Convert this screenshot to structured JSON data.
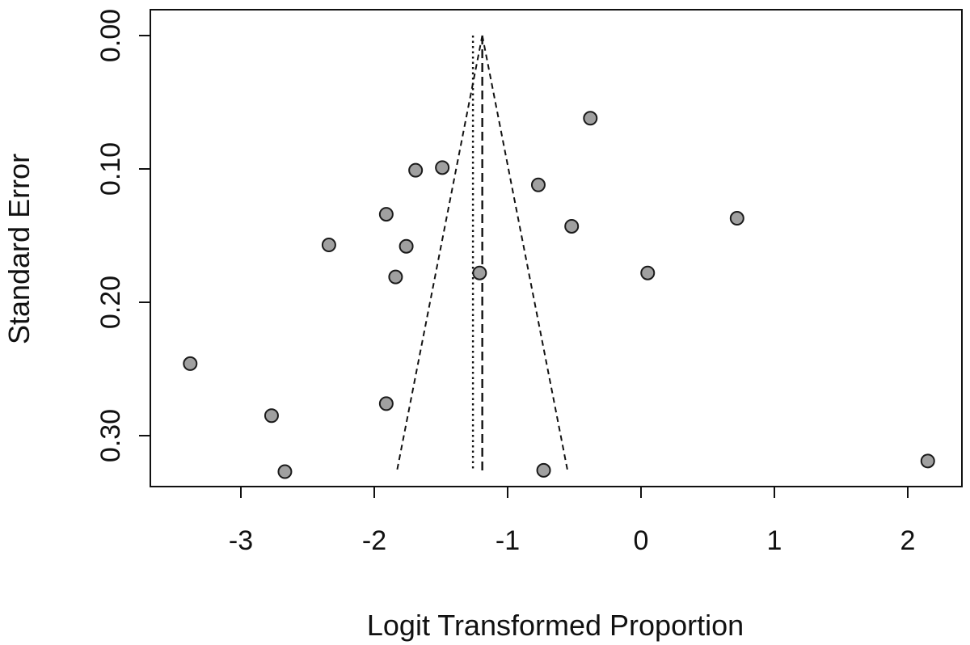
{
  "chart_data": {
    "type": "scatter",
    "title": "",
    "xlabel": "Logit Transformed Proportion",
    "ylabel": "Standard Error",
    "xlim": [
      -3.7,
      2.4
    ],
    "ylim": [
      0.0,
      0.338
    ],
    "y_reversed": true,
    "x_ticks": [
      -3,
      -2,
      -1,
      0,
      1,
      2
    ],
    "x_tick_labels": [
      "-3",
      "-2",
      "-1",
      "0",
      "1",
      "2"
    ],
    "y_ticks": [
      0.0,
      0.1,
      0.2,
      0.3
    ],
    "y_tick_labels": [
      "0.00",
      "0.10",
      "0.20",
      "0.30"
    ],
    "grid": false,
    "legend": "none",
    "point_fill": "#a0a0a0",
    "point_stroke": "#1a1a1a",
    "line_color": "#111111",
    "points": [
      {
        "x": -0.38,
        "y": 0.062
      },
      {
        "x": -1.49,
        "y": 0.099
      },
      {
        "x": -1.69,
        "y": 0.101
      },
      {
        "x": -0.77,
        "y": 0.112
      },
      {
        "x": -1.91,
        "y": 0.134
      },
      {
        "x": 0.72,
        "y": 0.137
      },
      {
        "x": -0.52,
        "y": 0.143
      },
      {
        "x": -2.34,
        "y": 0.157
      },
      {
        "x": -1.76,
        "y": 0.158
      },
      {
        "x": -1.21,
        "y": 0.178
      },
      {
        "x": 0.05,
        "y": 0.178
      },
      {
        "x": -1.84,
        "y": 0.181
      },
      {
        "x": -3.38,
        "y": 0.246
      },
      {
        "x": -1.91,
        "y": 0.276
      },
      {
        "x": -2.77,
        "y": 0.285
      },
      {
        "x": -2.67,
        "y": 0.327
      },
      {
        "x": -0.73,
        "y": 0.326
      },
      {
        "x": 2.15,
        "y": 0.319
      }
    ],
    "fixed_effect_estimate": -1.19,
    "random_effect_estimate": -1.26,
    "funnel_se_max": 0.327
  }
}
